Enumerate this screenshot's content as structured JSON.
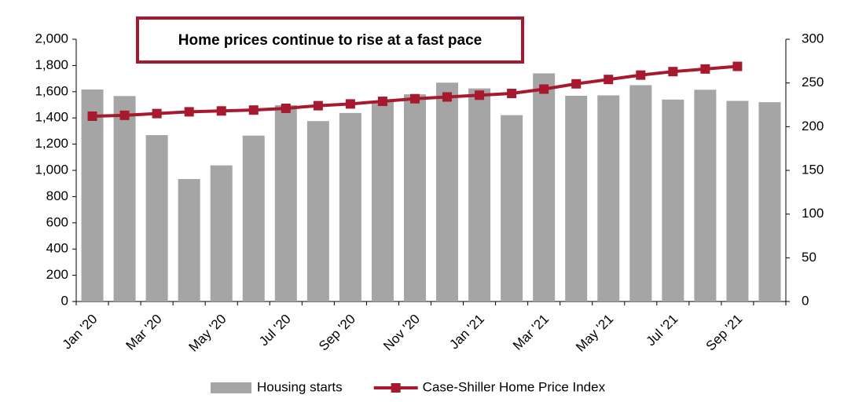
{
  "chart_data": {
    "type": "bar-line",
    "title": "Home prices continue to rise at a fast pace",
    "categories": [
      "Jan '20",
      null,
      "Mar '20",
      null,
      "May '20",
      null,
      "Jul '20",
      null,
      "Sep '20",
      null,
      "Nov '20",
      null,
      "Jan '21",
      null,
      "Mar '21",
      null,
      "May '21",
      null,
      "Jul '21",
      null,
      "Sep '21",
      null
    ],
    "series": [
      {
        "name": "Housing starts",
        "color": "#a5a5a5",
        "type": "bar",
        "values": [
          1617,
          1567,
          1269,
          934,
          1038,
          1265,
          1497,
          1376,
          1438,
          1530,
          1580,
          1669,
          1625,
          1421,
          1740,
          1569,
          1572,
          1650,
          1540,
          1615,
          1530,
          1520
        ]
      },
      {
        "name": "Case-Shiller Home Price Index",
        "color": "#a6192e",
        "type": "line",
        "axis": "y2",
        "values": [
          212,
          213,
          215,
          217,
          218,
          219,
          221,
          224,
          226,
          229,
          232,
          234,
          236,
          238,
          243,
          249,
          254,
          259,
          263,
          266,
          269,
          null
        ]
      }
    ],
    "ylim": [
      0,
      2000
    ],
    "yticks": [
      0,
      200,
      400,
      600,
      800,
      {
        "value": 1000,
        "label": "1,000"
      },
      {
        "value": 1200,
        "label": "1,200"
      },
      {
        "value": 1400,
        "label": "1,400"
      },
      {
        "value": 1600,
        "label": "1,600"
      },
      {
        "value": 1800,
        "label": "1,800"
      },
      {
        "value": 2000,
        "label": "2,000"
      }
    ],
    "y2lim": [
      0,
      300
    ],
    "y2ticks": [
      0,
      50,
      100,
      150,
      200,
      250,
      300
    ],
    "grid": false,
    "legend": "bottom"
  }
}
